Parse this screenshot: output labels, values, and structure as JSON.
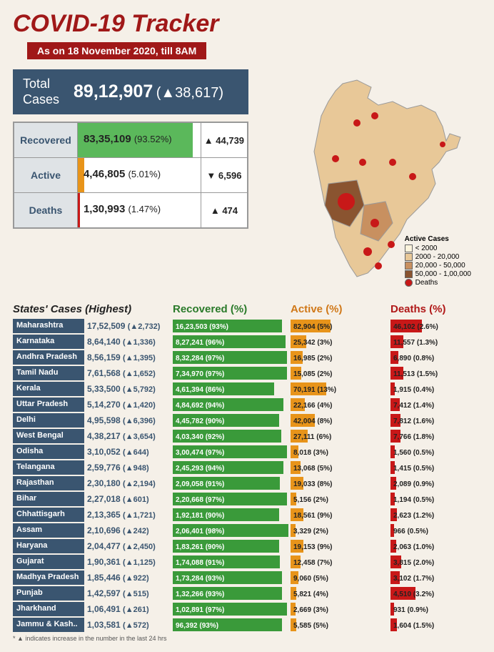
{
  "title": "COVID-19 Tracker",
  "date_label": "As on 18 November 2020, till 8AM",
  "total": {
    "label": "Total\nCases",
    "value": "89,12,907",
    "delta": "(▲38,617)"
  },
  "summary": [
    {
      "label": "Recovered",
      "value": "83,35,109",
      "pct": "(93.52%)",
      "delta": "▲ 44,739",
      "fill": "#5bb85b",
      "width": 93.5
    },
    {
      "label": "Active",
      "value": "4,46,805",
      "pct": "(5.01%)",
      "delta": "▼ 6,596",
      "fill": "#e8941a",
      "width": 5
    },
    {
      "label": "Deaths",
      "value": "1,30,993",
      "pct": "(1.47%)",
      "delta": "▲ 474",
      "fill": "#c81818",
      "width": 1.5
    }
  ],
  "legend": {
    "title": "Active Cases",
    "items": [
      {
        "color": "#fcf4dc",
        "label": "< 2000"
      },
      {
        "color": "#e8c898",
        "label": "2000 - 20,000"
      },
      {
        "color": "#c89060",
        "label": "20,000 - 50,000"
      },
      {
        "color": "#8a5430",
        "label": "50,000 - 1,00,000"
      }
    ],
    "deaths_label": "Deaths",
    "deaths_color": "#c81818"
  },
  "headers": {
    "state": "States' Cases (Highest)",
    "rec": "Recovered (%)",
    "act": "Active (%)",
    "dea": "Deaths (%)"
  },
  "colors": {
    "green": "#3a9a3a",
    "orange": "#e8941a",
    "red": "#c81818"
  },
  "rows": [
    {
      "state": "Maharashtra",
      "cases": "17,52,509",
      "delta": "(▲2,732)",
      "rec": "16,23,503 (93%)",
      "rw": 93,
      "act": "82,904 (5%)",
      "aw": 40,
      "dea": "46,102 (2.6%)",
      "dw": 35
    },
    {
      "state": "Karnataka",
      "cases": "8,64,140",
      "delta": "(▲1,336)",
      "rec": "8,27,241 (96%)",
      "rw": 96,
      "act": "25,342 (3%)",
      "aw": 16,
      "dea": "11,557 (1.3%)",
      "dw": 14
    },
    {
      "state": "Andhra Pradesh",
      "cases": "8,56,159",
      "delta": "(▲1,395)",
      "rec": "8,32,284 (97%)",
      "rw": 97,
      "act": "16,985 (2%)",
      "aw": 12,
      "dea": "6,890 (0.8%)",
      "dw": 9
    },
    {
      "state": "Tamil Nadu",
      "cases": "7,61,568",
      "delta": "(▲1,652)",
      "rec": "7,34,970 (97%)",
      "rw": 97,
      "act": "15,085 (2%)",
      "aw": 11,
      "dea": "11,513 (1.5%)",
      "dw": 14
    },
    {
      "state": "Kerala",
      "cases": "5,33,500",
      "delta": "(▲5,792)",
      "rec": "4,61,394 (86%)",
      "rw": 86,
      "act": "70,191 (13%)",
      "aw": 36,
      "dea": "1,915 (0.4%)",
      "dw": 5
    },
    {
      "state": "Uttar Pradesh",
      "cases": "5,14,270",
      "delta": "(▲1,420)",
      "rec": "4,84,692 (94%)",
      "rw": 94,
      "act": "22,166 (4%)",
      "aw": 14,
      "dea": "7,412 (1.4%)",
      "dw": 10
    },
    {
      "state": "Delhi",
      "cases": "4,95,598",
      "delta": "(▲6,396)",
      "rec": "4,45,782 (90%)",
      "rw": 90,
      "act": "42,004 (8%)",
      "aw": 24,
      "dea": "7,812 (1.6%)",
      "dw": 11
    },
    {
      "state": "West Bengal",
      "cases": "4,38,217",
      "delta": "(▲3,654)",
      "rec": "4,03,340 (92%)",
      "rw": 92,
      "act": "27,111 (6%)",
      "aw": 17,
      "dea": "7,766 (1.8%)",
      "dw": 11
    },
    {
      "state": "Odisha",
      "cases": "3,10,052",
      "delta": "(▲644)",
      "rec": "3,00,474 (97%)",
      "rw": 97,
      "act": "8,018 (3%)",
      "aw": 8,
      "dea": "1,560 (0.5%)",
      "dw": 5
    },
    {
      "state": "Telangana",
      "cases": "2,59,776",
      "delta": "(▲948)",
      "rec": "2,45,293 (94%)",
      "rw": 94,
      "act": "13,068 (5%)",
      "aw": 10,
      "dea": "1,415 (0.5%)",
      "dw": 5
    },
    {
      "state": "Rajasthan",
      "cases": "2,30,180",
      "delta": "(▲2,194)",
      "rec": "2,09,058 (91%)",
      "rw": 91,
      "act": "19,033 (8%)",
      "aw": 13,
      "dea": "2,089 (0.9%)",
      "dw": 6
    },
    {
      "state": "Bihar",
      "cases": "2,27,018",
      "delta": "(▲601)",
      "rec": "2,20,668 (97%)",
      "rw": 97,
      "act": "5,156 (2%)",
      "aw": 6,
      "dea": "1,194 (0.5%)",
      "dw": 5
    },
    {
      "state": "Chhattisgarh",
      "cases": "2,13,365",
      "delta": "(▲1,721)",
      "rec": "1,92,181 (90%)",
      "rw": 90,
      "act": "18,561 (9%)",
      "aw": 13,
      "dea": "2,623 (1.2%)",
      "dw": 7
    },
    {
      "state": "Assam",
      "cases": "2,10,696",
      "delta": "(▲242)",
      "rec": "2,06,401 (98%)",
      "rw": 98,
      "act": "3,329 (2%)",
      "aw": 5,
      "dea": "966 (0.5%)",
      "dw": 4
    },
    {
      "state": "Haryana",
      "cases": "2,04,477",
      "delta": "(▲2,450)",
      "rec": "1,83,261 (90%)",
      "rw": 90,
      "act": "19,153 (9%)",
      "aw": 13,
      "dea": "2,063 (1.0%)",
      "dw": 6
    },
    {
      "state": "Gujarat",
      "cases": "1,90,361",
      "delta": "(▲1,125)",
      "rec": "1,74,088 (91%)",
      "rw": 91,
      "act": "12,458 (7%)",
      "aw": 10,
      "dea": "3,815 (2.0%)",
      "dw": 12
    },
    {
      "state": "Madhya Pradesh",
      "cases": "1,85,446",
      "delta": "(▲922)",
      "rec": "1,73,284 (93%)",
      "rw": 93,
      "act": "9,060 (5%)",
      "aw": 8,
      "dea": "3,102 (1.7%)",
      "dw": 10
    },
    {
      "state": "Punjab",
      "cases": "1,42,597",
      "delta": "(▲515)",
      "rec": "1,32,266 (93%)",
      "rw": 93,
      "act": "5,821 (4%)",
      "aw": 6,
      "dea": "4,510 (3.2%)",
      "dw": 28
    },
    {
      "state": "Jharkhand",
      "cases": "1,06,491",
      "delta": "(▲261)",
      "rec": "1,02,891 (97%)",
      "rw": 97,
      "act": "2,669 (3%)",
      "aw": 5,
      "dea": "931 (0.9%)",
      "dw": 4
    },
    {
      "state": "Jammu & Kash..",
      "cases": "1,03,581",
      "delta": "(▲572)",
      "rec": "96,392 (93%)",
      "rw": 93,
      "act": "5,585 (5%)",
      "aw": 6,
      "dea": "1,604 (1.5%)",
      "dw": 7
    }
  ],
  "footnote": "* ▲ indicates increase in the number in the last 24 hrs"
}
